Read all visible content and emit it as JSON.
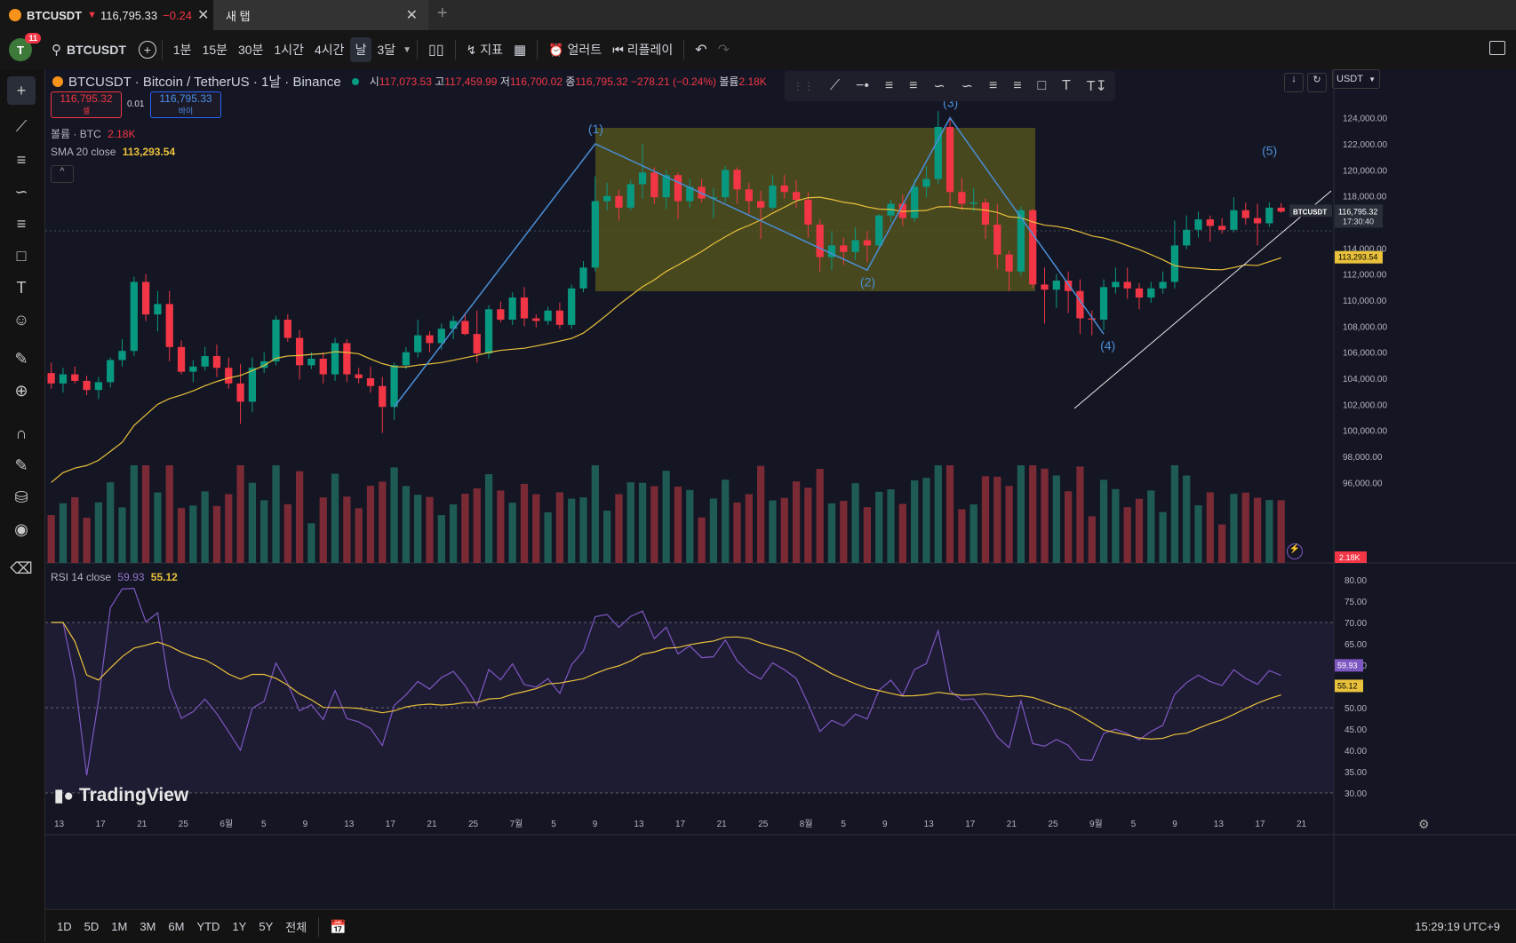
{
  "browser": {
    "active_tab": {
      "symbol": "BTCUSDT",
      "arrow": "▼",
      "price": "116,795.33",
      "change": "−0.24"
    },
    "new_tab": {
      "label": "새 탭"
    }
  },
  "toolbar": {
    "avatar": "T",
    "avatar_badge": "11",
    "symbol": "BTCUSDT",
    "intervals": [
      "1분",
      "15분",
      "30분",
      "1시간",
      "4시간",
      "날",
      "3달"
    ],
    "active_interval": "날",
    "indicators_label": "지표",
    "alerts_label": "얼러트",
    "replay_label": "리플레이"
  },
  "legend": {
    "title": "BTCUSDT · Bitcoin / TetherUS · 1날 · Binance",
    "o_label": "시",
    "o": "117,073.53",
    "h_label": "고",
    "h": "117,459.99",
    "l_label": "저",
    "l": "116,700.02",
    "c_label": "종",
    "c": "116,795.32",
    "chg": "−278.21 (−0.24%)",
    "vol_label": "볼륨",
    "vol": "2.18K",
    "sell_price": "116,795.32",
    "sell_label": "셀",
    "spread": "0.01",
    "buy_price": "116,795.33",
    "buy_label": "바이",
    "volume_line_label": "볼륨 · BTC",
    "volume_line_value": "2.18K",
    "sma_label": "SMA 20 close",
    "sma_value": "113,293.54",
    "rsi_label": "RSI 14 close",
    "rsi_value": "59.93",
    "rsi_ma_value": "55.12"
  },
  "currency": "USDT",
  "watermark": "TradingView",
  "price_axis": [
    "124,000.00",
    "122,000.00",
    "120,000.00",
    "118,000.00",
    "114,000.00",
    "112,000.00",
    "110,000.00",
    "108,000.00",
    "106,000.00",
    "104,000.00",
    "102,000.00",
    "100,000.00",
    "98,000.00",
    "96,000.00"
  ],
  "price_tags": {
    "last_symbol": "BTCUSDT",
    "last_price": "116,795.32",
    "countdown": "17:30:40",
    "sma": "113,293.54",
    "volume": "2.18K"
  },
  "rsi_axis": [
    "80.00",
    "75.00",
    "70.00",
    "65.00",
    "60.00",
    "50.00",
    "45.00",
    "40.00",
    "35.00",
    "30.00"
  ],
  "rsi_tags": {
    "rsi": "59.93",
    "ma": "55.12"
  },
  "time_axis": [
    "13",
    "17",
    "21",
    "25",
    "6월",
    "5",
    "9",
    "13",
    "17",
    "21",
    "25",
    "7월",
    "5",
    "9",
    "13",
    "17",
    "21",
    "25",
    "8월",
    "5",
    "9",
    "13",
    "17",
    "21",
    "25",
    "9월",
    "5",
    "9",
    "13",
    "17",
    "21"
  ],
  "wave_labels": [
    "(1)",
    "(2)",
    "(3)",
    "(4)",
    "(5)"
  ],
  "bottom": {
    "ranges": [
      "1D",
      "5D",
      "1M",
      "3M",
      "6M",
      "YTD",
      "1Y",
      "5Y",
      "전체"
    ],
    "clock": "15:29:19 UTC+9"
  },
  "colors": {
    "up": "#089981",
    "down": "#f23645",
    "sma": "#e9c13b",
    "rsi": "#7e57c2",
    "wave": "#4a8fd6",
    "box": "#5a5a1e"
  },
  "chart_data": {
    "type": "candlestick",
    "symbol": "BTCUSDT",
    "interval": "1D",
    "ylim": [
      95000,
      125000
    ],
    "candles": [
      [
        104400,
        105200,
        103200,
        103600
      ],
      [
        103600,
        104800,
        102900,
        104300
      ],
      [
        104300,
        104900,
        103600,
        103800
      ],
      [
        103800,
        104200,
        102700,
        103100
      ],
      [
        103100,
        104100,
        102400,
        103700
      ],
      [
        103700,
        105600,
        103300,
        105400
      ],
      [
        105400,
        107000,
        104900,
        106100
      ],
      [
        106100,
        111800,
        105700,
        111400
      ],
      [
        111400,
        112000,
        108400,
        108900
      ],
      [
        108900,
        110700,
        107600,
        109700
      ],
      [
        109700,
        110700,
        105300,
        106400
      ],
      [
        106400,
        106900,
        104300,
        104500
      ],
      [
        104500,
        105400,
        103700,
        104900
      ],
      [
        104900,
        106400,
        104600,
        105700
      ],
      [
        105700,
        106600,
        104100,
        104800
      ],
      [
        104800,
        105600,
        103200,
        103600
      ],
      [
        103600,
        105100,
        100500,
        102200
      ],
      [
        102200,
        105600,
        101400,
        104800
      ],
      [
        104800,
        106000,
        104400,
        105300
      ],
      [
        105300,
        108800,
        105000,
        108500
      ],
      [
        108500,
        108900,
        106800,
        107100
      ],
      [
        107100,
        107700,
        103900,
        105000
      ],
      [
        105000,
        106000,
        104700,
        105500
      ],
      [
        105500,
        106000,
        103600,
        104300
      ],
      [
        104300,
        107100,
        103800,
        106700
      ],
      [
        106700,
        107000,
        103700,
        104300
      ],
      [
        104300,
        104800,
        103600,
        104000
      ],
      [
        104000,
        104900,
        102900,
        103400
      ],
      [
        103400,
        104100,
        99800,
        101800
      ],
      [
        101800,
        105200,
        100800,
        105000
      ],
      [
        105000,
        106400,
        104700,
        106000
      ],
      [
        106000,
        108500,
        105600,
        107300
      ],
      [
        107300,
        107600,
        106000,
        106700
      ],
      [
        106700,
        108200,
        106200,
        107800
      ],
      [
        107800,
        108800,
        107000,
        108400
      ],
      [
        108400,
        108900,
        107300,
        107400
      ],
      [
        107400,
        109200,
        105200,
        105900
      ],
      [
        105900,
        109600,
        105500,
        109300
      ],
      [
        109300,
        109900,
        108300,
        108500
      ],
      [
        108500,
        110600,
        108100,
        110200
      ],
      [
        110200,
        111000,
        108000,
        108600
      ],
      [
        108600,
        108900,
        107900,
        108400
      ],
      [
        108400,
        109500,
        108100,
        109200
      ],
      [
        109200,
        109800,
        107800,
        108100
      ],
      [
        108100,
        111200,
        107800,
        110900
      ],
      [
        110900,
        113000,
        110600,
        112500
      ],
      [
        112500,
        119500,
        112200,
        117600
      ],
      [
        117600,
        119000,
        116900,
        118000
      ],
      [
        118000,
        118500,
        116100,
        117100
      ],
      [
        117100,
        119200,
        116900,
        118900
      ],
      [
        118900,
        122000,
        117800,
        119800
      ],
      [
        119800,
        120200,
        117400,
        117900
      ],
      [
        117900,
        120000,
        117000,
        119600
      ],
      [
        119600,
        119800,
        116200,
        117600
      ],
      [
        117600,
        119300,
        117100,
        118700
      ],
      [
        118700,
        119300,
        117500,
        117800
      ],
      [
        117800,
        118600,
        116300,
        117900
      ],
      [
        117900,
        120300,
        117500,
        120000
      ],
      [
        120000,
        120200,
        117400,
        118500
      ],
      [
        118500,
        119000,
        116600,
        117600
      ],
      [
        117600,
        118400,
        114700,
        117100
      ],
      [
        117100,
        119600,
        116900,
        118800
      ],
      [
        118800,
        119600,
        117800,
        118300
      ],
      [
        118300,
        119200,
        117100,
        117700
      ],
      [
        117700,
        118300,
        114800,
        115800
      ],
      [
        115800,
        116200,
        112200,
        113300
      ],
      [
        113300,
        115300,
        112300,
        114200
      ],
      [
        114200,
        114800,
        112700,
        113700
      ],
      [
        113700,
        115600,
        113100,
        114600
      ],
      [
        114600,
        115300,
        112900,
        114200
      ],
      [
        114200,
        116600,
        114000,
        116500
      ],
      [
        116500,
        117700,
        116000,
        117400
      ],
      [
        117400,
        118100,
        115700,
        116300
      ],
      [
        116300,
        119300,
        116000,
        118700
      ],
      [
        118700,
        120300,
        117900,
        119300
      ],
      [
        119300,
        124500,
        118900,
        123300
      ],
      [
        123300,
        124000,
        117200,
        118300
      ],
      [
        118300,
        119400,
        116900,
        117400
      ],
      [
        117400,
        118600,
        116800,
        117500
      ],
      [
        117500,
        117800,
        114700,
        115800
      ],
      [
        115800,
        117400,
        112400,
        113500
      ],
      [
        113500,
        113800,
        110700,
        112200
      ],
      [
        112200,
        117200,
        111900,
        116900
      ],
      [
        116900,
        117000,
        110900,
        111200
      ],
      [
        111200,
        112500,
        108200,
        110800
      ],
      [
        110800,
        112000,
        109400,
        111500
      ],
      [
        111500,
        112200,
        109000,
        110700
      ],
      [
        110700,
        111600,
        107400,
        108600
      ],
      [
        108600,
        109200,
        107300,
        108500
      ],
      [
        108500,
        111600,
        107700,
        111000
      ],
      [
        111000,
        112500,
        110500,
        111400
      ],
      [
        111400,
        112500,
        110100,
        110900
      ],
      [
        110900,
        111300,
        109300,
        110200
      ],
      [
        110200,
        111400,
        109800,
        110900
      ],
      [
        110900,
        112200,
        110500,
        111400
      ],
      [
        111400,
        116100,
        110900,
        114200
      ],
      [
        114200,
        116500,
        113900,
        115400
      ],
      [
        115400,
        116800,
        114800,
        116200
      ],
      [
        116200,
        116500,
        114500,
        115700
      ],
      [
        115700,
        116300,
        115100,
        115400
      ],
      [
        115400,
        117900,
        115200,
        116900
      ],
      [
        116900,
        117500,
        115800,
        116300
      ],
      [
        116300,
        117400,
        114200,
        115900
      ],
      [
        115900,
        117500,
        115600,
        117100
      ],
      [
        117100,
        117460,
        116700,
        116795
      ]
    ],
    "sma20_last": 113293.54,
    "rsi_last": 59.93,
    "rsi_ma_last": 55.12
  }
}
